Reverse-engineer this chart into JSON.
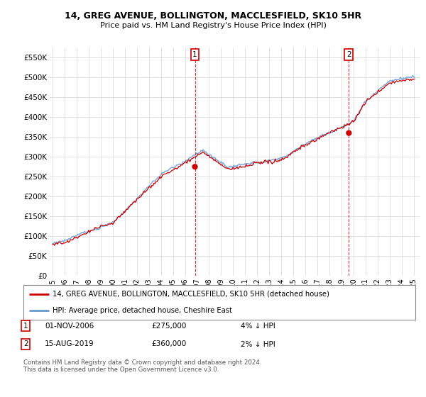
{
  "title": "14, GREG AVENUE, BOLLINGTON, MACCLESFIELD, SK10 5HR",
  "subtitle": "Price paid vs. HM Land Registry's House Price Index (HPI)",
  "ylabel_ticks": [
    "£0",
    "£50K",
    "£100K",
    "£150K",
    "£200K",
    "£250K",
    "£300K",
    "£350K",
    "£400K",
    "£450K",
    "£500K",
    "£550K"
  ],
  "ytick_values": [
    0,
    50000,
    100000,
    150000,
    200000,
    250000,
    300000,
    350000,
    400000,
    450000,
    500000,
    550000
  ],
  "ylim": [
    0,
    575000
  ],
  "xlim_start": 1994.7,
  "xlim_end": 2025.5,
  "background_color": "#ffffff",
  "plot_bg_color": "#ffffff",
  "grid_color": "#dddddd",
  "red_color": "#cc0000",
  "blue_color": "#6699cc",
  "blue_fill_color": "#ddeeff",
  "transaction1_date": 2006.83,
  "transaction1_price": 275000,
  "transaction2_date": 2019.62,
  "transaction2_price": 360000,
  "legend_label_red": "14, GREG AVENUE, BOLLINGTON, MACCLESFIELD, SK10 5HR (detached house)",
  "legend_label_blue": "HPI: Average price, detached house, Cheshire East",
  "copyright": "Contains HM Land Registry data © Crown copyright and database right 2024.\nThis data is licensed under the Open Government Licence v3.0."
}
